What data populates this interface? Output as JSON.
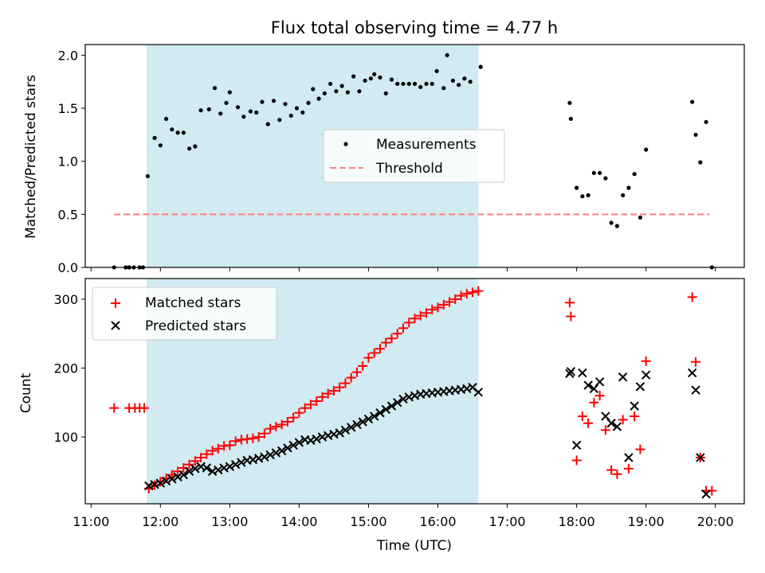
{
  "chart_data": [
    {
      "type": "scatter",
      "title": "Flux total observing time = 4.77 h",
      "xlabel": "",
      "ylabel": "Matched/Predicted stars",
      "xlim": [
        "10:55",
        "20:25"
      ],
      "ylim": [
        0,
        2.1
      ],
      "y_ticks": [
        "0.0",
        "0.5",
        "1.0",
        "1.5",
        "2.0"
      ],
      "legend": {
        "position": "center-right",
        "entries": [
          "Measurements",
          "Threshold"
        ]
      },
      "observing_window": {
        "start": "11:48",
        "end": "16:35",
        "color": "#add8e6"
      },
      "threshold": {
        "value": 0.5,
        "x": [
          "11:20",
          "19:55"
        ],
        "color": "#ff7f7f"
      },
      "series": [
        {
          "name": "Measurements",
          "color": "#000000",
          "points": [
            [
              "11:20",
              0.0
            ],
            [
              "11:30",
              0.0
            ],
            [
              "11:33",
              0.0
            ],
            [
              "11:37",
              0.0
            ],
            [
              "11:42",
              0.0
            ],
            [
              "11:45",
              0.0
            ],
            [
              "11:49",
              0.86
            ],
            [
              "11:55",
              1.22
            ],
            [
              "12:00",
              1.15
            ],
            [
              "12:05",
              1.4
            ],
            [
              "12:10",
              1.3
            ],
            [
              "12:15",
              1.27
            ],
            [
              "12:20",
              1.27
            ],
            [
              "12:25",
              1.12
            ],
            [
              "12:30",
              1.14
            ],
            [
              "12:35",
              1.48
            ],
            [
              "12:42",
              1.49
            ],
            [
              "12:47",
              1.69
            ],
            [
              "12:52",
              1.45
            ],
            [
              "12:57",
              1.55
            ],
            [
              "13:00",
              1.65
            ],
            [
              "13:07",
              1.51
            ],
            [
              "13:12",
              1.42
            ],
            [
              "13:18",
              1.47
            ],
            [
              "13:23",
              1.46
            ],
            [
              "13:28",
              1.56
            ],
            [
              "13:33",
              1.35
            ],
            [
              "13:38",
              1.57
            ],
            [
              "13:43",
              1.39
            ],
            [
              "13:48",
              1.54
            ],
            [
              "13:53",
              1.43
            ],
            [
              "13:58",
              1.5
            ],
            [
              "14:03",
              1.46
            ],
            [
              "14:08",
              1.55
            ],
            [
              "14:12",
              1.68
            ],
            [
              "14:17",
              1.59
            ],
            [
              "14:22",
              1.64
            ],
            [
              "14:27",
              1.73
            ],
            [
              "14:32",
              1.66
            ],
            [
              "14:37",
              1.71
            ],
            [
              "14:42",
              1.65
            ],
            [
              "14:47",
              1.8
            ],
            [
              "14:52",
              1.66
            ],
            [
              "14:57",
              1.76
            ],
            [
              "15:02",
              1.78
            ],
            [
              "15:05",
              1.82
            ],
            [
              "15:10",
              1.79
            ],
            [
              "15:15",
              1.64
            ],
            [
              "15:20",
              1.77
            ],
            [
              "15:25",
              1.73
            ],
            [
              "15:30",
              1.73
            ],
            [
              "15:35",
              1.73
            ],
            [
              "15:40",
              1.73
            ],
            [
              "15:45",
              1.7
            ],
            [
              "15:50",
              1.73
            ],
            [
              "15:55",
              1.73
            ],
            [
              "15:59",
              1.85
            ],
            [
              "16:05",
              1.69
            ],
            [
              "16:08",
              2.0
            ],
            [
              "16:13",
              1.76
            ],
            [
              "16:18",
              1.72
            ],
            [
              "16:23",
              1.78
            ],
            [
              "16:28",
              1.75
            ],
            [
              "16:37",
              1.89
            ],
            [
              "17:54",
              1.55
            ],
            [
              "17:55",
              1.4
            ],
            [
              "18:00",
              0.75
            ],
            [
              "18:05",
              0.67
            ],
            [
              "18:10",
              0.68
            ],
            [
              "18:15",
              0.89
            ],
            [
              "18:20",
              0.89
            ],
            [
              "18:25",
              0.84
            ],
            [
              "18:30",
              0.42
            ],
            [
              "18:35",
              0.39
            ],
            [
              "18:40",
              0.68
            ],
            [
              "18:45",
              0.75
            ],
            [
              "18:50",
              0.88
            ],
            [
              "18:55",
              0.47
            ],
            [
              "19:00",
              1.11
            ],
            [
              "19:40",
              1.56
            ],
            [
              "19:43",
              1.25
            ],
            [
              "19:47",
              0.99
            ],
            [
              "19:52",
              1.37
            ],
            [
              "19:57",
              0.0
            ]
          ]
        }
      ]
    },
    {
      "type": "scatter",
      "title": "",
      "xlabel": "Time (UTC)",
      "ylabel": "Count",
      "xlim": [
        "10:55",
        "20:25"
      ],
      "ylim": [
        3,
        330
      ],
      "x_ticks": [
        "11:00",
        "12:00",
        "13:00",
        "14:00",
        "15:00",
        "16:00",
        "17:00",
        "18:00",
        "19:00",
        "20:00"
      ],
      "y_ticks": [
        "100",
        "200",
        "300"
      ],
      "legend": {
        "position": "upper-left",
        "entries": [
          "Matched stars",
          "Predicted stars"
        ]
      },
      "observing_window": {
        "start": "11:48",
        "end": "16:35",
        "color": "#add8e6"
      },
      "series": [
        {
          "name": "Matched stars",
          "marker": "plus",
          "color": "#ff0000",
          "points": [
            [
              "11:20",
              142
            ],
            [
              "11:33",
              142
            ],
            [
              "11:38",
              142
            ],
            [
              "11:42",
              142
            ],
            [
              "11:46",
              142
            ],
            [
              "11:50",
              25
            ],
            [
              "11:55",
              30
            ],
            [
              "12:00",
              35
            ],
            [
              "12:05",
              40
            ],
            [
              "12:10",
              45
            ],
            [
              "12:15",
              50
            ],
            [
              "12:20",
              55
            ],
            [
              "12:25",
              60
            ],
            [
              "12:30",
              65
            ],
            [
              "12:35",
              70
            ],
            [
              "12:40",
              75
            ],
            [
              "12:45",
              80
            ],
            [
              "12:50",
              83
            ],
            [
              "12:55",
              87
            ],
            [
              "13:00",
              88
            ],
            [
              "13:05",
              94
            ],
            [
              "13:10",
              96
            ],
            [
              "13:15",
              97
            ],
            [
              "13:20",
              98
            ],
            [
              "13:25",
              100
            ],
            [
              "13:30",
              105
            ],
            [
              "13:35",
              112
            ],
            [
              "13:40",
              115
            ],
            [
              "13:45",
              118
            ],
            [
              "13:50",
              122
            ],
            [
              "13:55",
              128
            ],
            [
              "14:00",
              135
            ],
            [
              "14:05",
              142
            ],
            [
              "14:10",
              147
            ],
            [
              "14:15",
              152
            ],
            [
              "14:20",
              158
            ],
            [
              "14:25",
              163
            ],
            [
              "14:30",
              167
            ],
            [
              "14:35",
              172
            ],
            [
              "14:40",
              178
            ],
            [
              "14:45",
              186
            ],
            [
              "14:50",
              194
            ],
            [
              "14:55",
              203
            ],
            [
              "15:00",
              215
            ],
            [
              "15:05",
              222
            ],
            [
              "15:10",
              228
            ],
            [
              "15:15",
              237
            ],
            [
              "15:20",
              243
            ],
            [
              "15:25",
              250
            ],
            [
              "15:30",
              258
            ],
            [
              "15:35",
              266
            ],
            [
              "15:40",
              272
            ],
            [
              "15:45",
              276
            ],
            [
              "15:50",
              280
            ],
            [
              "15:55",
              285
            ],
            [
              "16:00",
              288
            ],
            [
              "16:05",
              292
            ],
            [
              "16:10",
              296
            ],
            [
              "16:15",
              300
            ],
            [
              "16:20",
              305
            ],
            [
              "16:25",
              308
            ],
            [
              "16:30",
              310
            ],
            [
              "16:35",
              312
            ],
            [
              "17:54",
              295
            ],
            [
              "17:55",
              275
            ],
            [
              "18:00",
              66
            ],
            [
              "18:05",
              130
            ],
            [
              "18:10",
              120
            ],
            [
              "18:15",
              150
            ],
            [
              "18:20",
              160
            ],
            [
              "18:25",
              110
            ],
            [
              "18:30",
              52
            ],
            [
              "18:35",
              46
            ],
            [
              "18:40",
              125
            ],
            [
              "18:45",
              54
            ],
            [
              "18:50",
              130
            ],
            [
              "18:55",
              82
            ],
            [
              "19:00",
              210
            ],
            [
              "19:40",
              303
            ],
            [
              "19:43",
              209
            ],
            [
              "19:47",
              70
            ],
            [
              "19:52",
              22
            ],
            [
              "19:57",
              22
            ]
          ]
        },
        {
          "name": "Predicted stars",
          "marker": "x",
          "color": "#000000",
          "points": [
            [
              "11:50",
              29
            ],
            [
              "11:55",
              31
            ],
            [
              "12:00",
              33
            ],
            [
              "12:05",
              36
            ],
            [
              "12:10",
              39
            ],
            [
              "12:15",
              42
            ],
            [
              "12:20",
              45
            ],
            [
              "12:25",
              50
            ],
            [
              "12:30",
              54
            ],
            [
              "12:35",
              57
            ],
            [
              "12:40",
              55
            ],
            [
              "12:45",
              50
            ],
            [
              "12:50",
              52
            ],
            [
              "12:55",
              55
            ],
            [
              "13:00",
              57
            ],
            [
              "13:05",
              60
            ],
            [
              "13:10",
              63
            ],
            [
              "13:15",
              66
            ],
            [
              "13:20",
              67
            ],
            [
              "13:25",
              69
            ],
            [
              "13:30",
              71
            ],
            [
              "13:35",
              74
            ],
            [
              "13:40",
              77
            ],
            [
              "13:45",
              80
            ],
            [
              "13:50",
              84
            ],
            [
              "13:55",
              88
            ],
            [
              "14:00",
              92
            ],
            [
              "14:05",
              96
            ],
            [
              "14:10",
              95
            ],
            [
              "14:15",
              97
            ],
            [
              "14:20",
              100
            ],
            [
              "14:25",
              102
            ],
            [
              "14:30",
              104
            ],
            [
              "14:35",
              106
            ],
            [
              "14:40",
              110
            ],
            [
              "14:45",
              114
            ],
            [
              "14:50",
              118
            ],
            [
              "14:55",
              122
            ],
            [
              "15:00",
              126
            ],
            [
              "15:05",
              130
            ],
            [
              "15:10",
              135
            ],
            [
              "15:15",
              140
            ],
            [
              "15:20",
              145
            ],
            [
              "15:25",
              150
            ],
            [
              "15:30",
              155
            ],
            [
              "15:35",
              158
            ],
            [
              "15:40",
              160
            ],
            [
              "15:45",
              162
            ],
            [
              "15:50",
              163
            ],
            [
              "15:55",
              164
            ],
            [
              "16:00",
              165
            ],
            [
              "16:05",
              166
            ],
            [
              "16:10",
              167
            ],
            [
              "16:15",
              168
            ],
            [
              "16:20",
              169
            ],
            [
              "16:25",
              170
            ],
            [
              "16:30",
              172
            ],
            [
              "16:35",
              165
            ],
            [
              "17:54",
              192
            ],
            [
              "17:55",
              195
            ],
            [
              "18:00",
              88
            ],
            [
              "18:05",
              193
            ],
            [
              "18:10",
              175
            ],
            [
              "18:15",
              170
            ],
            [
              "18:20",
              180
            ],
            [
              "18:25",
              130
            ],
            [
              "18:30",
              120
            ],
            [
              "18:35",
              115
            ],
            [
              "18:40",
              187
            ],
            [
              "18:45",
              70
            ],
            [
              "18:50",
              145
            ],
            [
              "18:55",
              173
            ],
            [
              "19:00",
              190
            ],
            [
              "19:40",
              193
            ],
            [
              "19:43",
              168
            ],
            [
              "19:47",
              70
            ],
            [
              "19:52",
              17
            ]
          ]
        }
      ]
    }
  ]
}
